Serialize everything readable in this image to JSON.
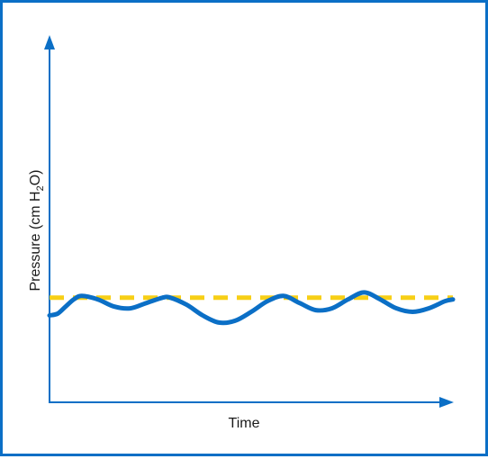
{
  "chart_data": {
    "type": "line",
    "title": "",
    "xlabel": "Time",
    "ylabel": {
      "prefix": "Pressure (cm H",
      "sub": "2",
      "suffix": "O)"
    },
    "colors": {
      "axis": "#0b6fc6",
      "border": "#0b6fc6",
      "pressure_wave": "#0b6fc6",
      "reference_line": "#f7cf16"
    },
    "xlim": [
      0,
      100
    ],
    "ylim": [
      0,
      100
    ],
    "series": [
      {
        "style": "solid",
        "x": [
          0,
          2,
          4,
          6,
          8,
          12,
          16,
          20,
          24,
          28,
          30,
          34,
          38,
          42,
          46,
          50,
          54,
          58,
          62,
          66,
          70,
          74,
          78,
          82,
          86,
          90,
          94,
          98,
          100
        ],
        "y": [
          24.5,
          25,
          27,
          29,
          30,
          29,
          27,
          26.5,
          28,
          29.5,
          29.5,
          27.5,
          24.5,
          22.5,
          23,
          25.5,
          28.5,
          30,
          28,
          26,
          26.5,
          29,
          31,
          29,
          26.5,
          25.5,
          26.5,
          28.5,
          29
        ]
      },
      {
        "style": "dashed",
        "x": [
          0,
          100
        ],
        "y": [
          29.5,
          29.5
        ]
      }
    ]
  }
}
